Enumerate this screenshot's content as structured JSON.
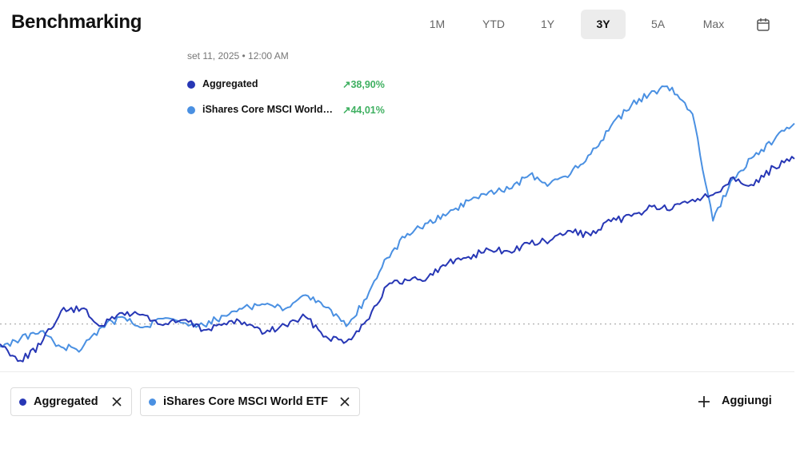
{
  "header": {
    "title": "Benchmarking",
    "ranges": [
      {
        "label": "1M",
        "active": false
      },
      {
        "label": "YTD",
        "active": false
      },
      {
        "label": "1Y",
        "active": false
      },
      {
        "label": "3Y",
        "active": true
      },
      {
        "label": "5A",
        "active": false
      },
      {
        "label": "Max",
        "active": false
      }
    ],
    "calendar_icon": "calendar-icon"
  },
  "tooltip": {
    "date": "set 11, 2025 • 12:00 AM",
    "rows": [
      {
        "name": "Aggregated",
        "value": "↗38,90%",
        "dot_color": "#2737b5"
      },
      {
        "name": "iShares Core MSCI World…",
        "value": "↗44,01%",
        "dot_color": "#4a90e2"
      }
    ],
    "value_color": "#3fb061"
  },
  "chips": [
    {
      "label": "Aggregated",
      "dot_color": "#2737b5",
      "remove_icon": "close-icon"
    },
    {
      "label": "iShares Core MSCI World ETF",
      "dot_color": "#4a90e2",
      "remove_icon": "close-icon"
    }
  ],
  "add_button": {
    "label": "Aggiungi",
    "icon": "plus-icon"
  },
  "chart_data": {
    "type": "line",
    "baseline": 0,
    "ylim": [
      -6,
      46
    ],
    "x": [
      0,
      4,
      8,
      12,
      16,
      20,
      24,
      28,
      32,
      36,
      40,
      44,
      48,
      52,
      56,
      60,
      64,
      68,
      72,
      76,
      80,
      84,
      88,
      92,
      96,
      100,
      104,
      108,
      112,
      116,
      120,
      124,
      128,
      132,
      136,
      140,
      144,
      148,
      152,
      156
    ],
    "series": [
      {
        "name": "Aggregated",
        "color": "#2737b5",
        "values": [
          -3.4,
          -6.2,
          -3.5,
          2.2,
          2.6,
          -0.3,
          1.9,
          1.6,
          -0.2,
          0.7,
          -1.0,
          0.1,
          0.3,
          -1.5,
          -0.2,
          1.2,
          -2.1,
          -3.0,
          0.6,
          6.5,
          7.4,
          7.9,
          10.4,
          11.4,
          12.6,
          12.3,
          13.6,
          14.1,
          15.8,
          15.0,
          17.4,
          18.3,
          19.9,
          19.5,
          21.1,
          21.9,
          24.9,
          23.5,
          26.6,
          28.0
        ]
      },
      {
        "name": "iShares Core MSCI World ETF",
        "color": "#4a90e2",
        "values": [
          -3.8,
          -2.5,
          -1.2,
          -3.9,
          -4.3,
          -0.5,
          1.2,
          -0.6,
          0.9,
          0.2,
          -0.2,
          1.4,
          2.9,
          3.3,
          2.6,
          4.9,
          2.8,
          -0.4,
          4.3,
          11.2,
          15.3,
          17.1,
          18.8,
          20.9,
          22.4,
          22.9,
          25.3,
          23.8,
          25.4,
          28.8,
          33.6,
          37.1,
          39.5,
          40.1,
          35.6,
          17.5,
          24.8,
          28.4,
          31.1,
          34.0
        ]
      }
    ]
  }
}
